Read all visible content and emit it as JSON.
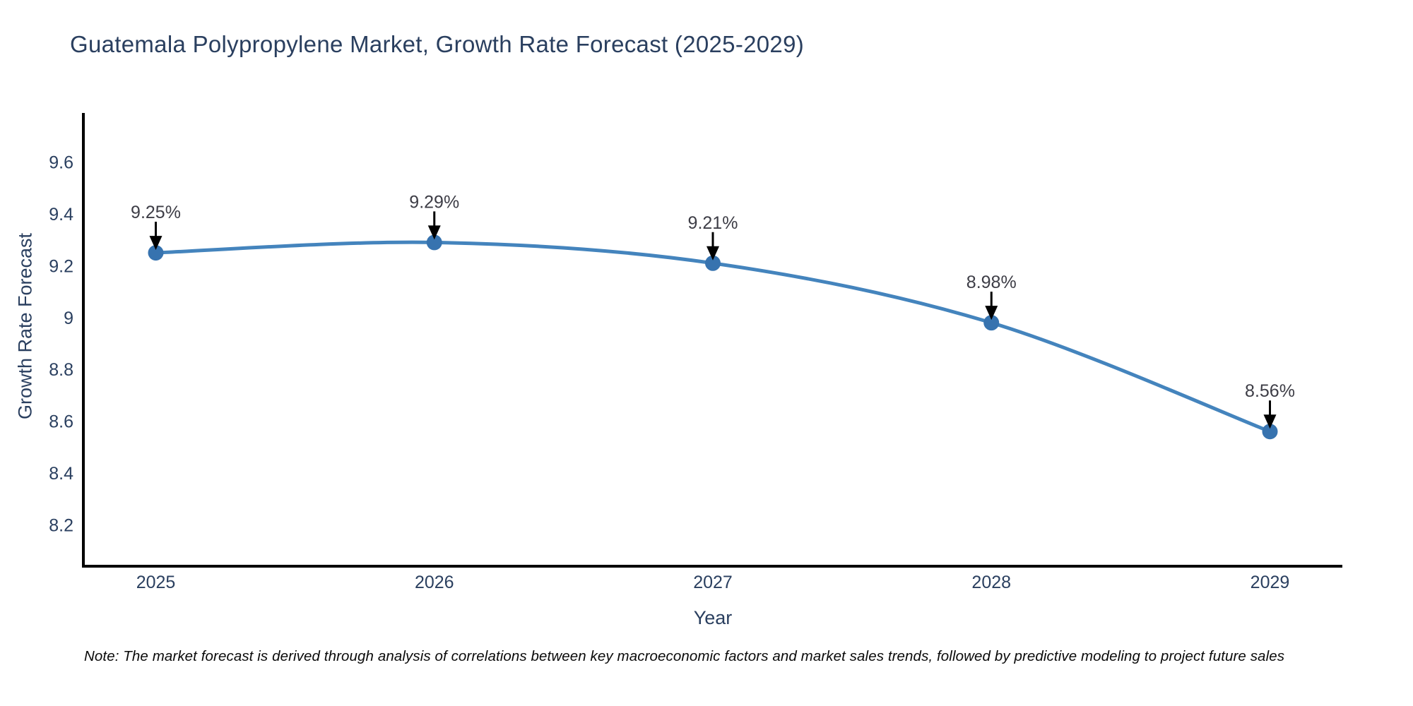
{
  "note": "Note: The market forecast is derived through analysis of correlations between key macroeconomic factors and market sales trends, followed by predictive modeling to project future sales",
  "chart_data": {
    "type": "line",
    "title": "Guatemala Polypropylene Market, Growth Rate Forecast (2025-2029)",
    "xlabel": "Year",
    "ylabel": "Growth Rate Forecast",
    "x": [
      2025,
      2026,
      2027,
      2028,
      2029
    ],
    "series": [
      {
        "name": "Growth Rate Forecast",
        "values": [
          9.25,
          9.29,
          9.21,
          8.98,
          8.56
        ],
        "point_labels": [
          "9.25%",
          "9.29%",
          "9.21%",
          "8.98%",
          "8.56%"
        ]
      }
    ],
    "xticks": [
      "2025",
      "2026",
      "2027",
      "2028",
      "2029"
    ],
    "yticks": [
      9.6,
      9.4,
      9.2,
      9,
      8.8,
      8.6,
      8.4,
      8.2
    ],
    "xlim": [
      2024.74,
      2029.26
    ],
    "ylim": [
      8.04,
      9.79
    ],
    "grid": false,
    "legend": false,
    "line_shape": "spline",
    "annotation_arrows": "down",
    "colors": {
      "line": "#4484bd",
      "marker": "#3773af",
      "axis": "#000000",
      "text": "#2a3f5f",
      "annotation_arrow": "#000000",
      "annotation_text": "#3d3d46",
      "background": "#ffffff"
    }
  }
}
